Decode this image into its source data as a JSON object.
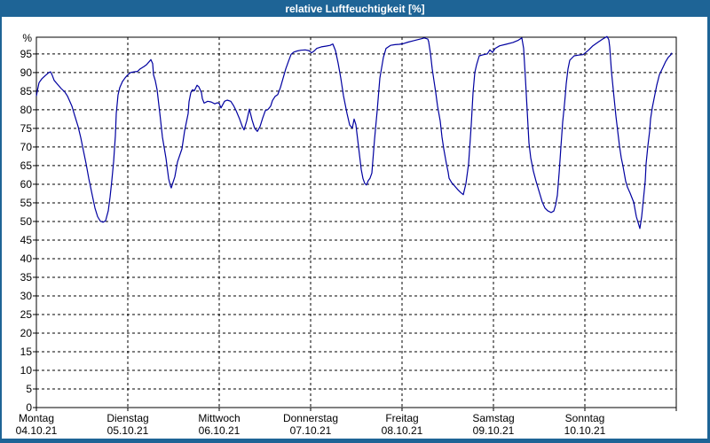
{
  "window": {
    "title": "relative Luftfeuchtigkeit [%]"
  },
  "colors": {
    "titlebar_bg": "#1e6496",
    "titlebar_text": "#ffffff",
    "window_border": "#1e6496",
    "plot_bg": "#ffffff",
    "frame": "#000000",
    "grid": "#000000",
    "label_text": "#000000",
    "line": "#0000a0"
  },
  "chart_data": {
    "type": "line",
    "title": "relative Luftfeuchtigkeit [%]",
    "ylabel": "%",
    "grid": "dashed",
    "legend": "none",
    "y_axis": {
      "min": 0,
      "max": 99.5,
      "tick_step": 5,
      "ticks": [
        0,
        5,
        10,
        15,
        20,
        25,
        30,
        35,
        40,
        45,
        50,
        55,
        60,
        65,
        70,
        75,
        80,
        85,
        90,
        95
      ]
    },
    "x_axis": {
      "unit": "day",
      "range_days": [
        0,
        7
      ],
      "days": [
        {
          "name": "Montag",
          "date": "04.10.21"
        },
        {
          "name": "Dienstag",
          "date": "05.10.21"
        },
        {
          "name": "Mittwoch",
          "date": "06.10.21"
        },
        {
          "name": "Donnerstag",
          "date": "07.10.21"
        },
        {
          "name": "Freitag",
          "date": "08.10.21"
        },
        {
          "name": "Samstag",
          "date": "09.10.21"
        },
        {
          "name": "Sonntag",
          "date": "10.10.21"
        }
      ]
    },
    "series": [
      {
        "name": "relative Luftfeuchtigkeit",
        "unit": "%",
        "points": [
          [
            0.0,
            83.7
          ],
          [
            0.01,
            85.0
          ],
          [
            0.029,
            87.3
          ],
          [
            0.058,
            88.3
          ],
          [
            0.097,
            89.2
          ],
          [
            0.136,
            90.0
          ],
          [
            0.155,
            90.2
          ],
          [
            0.175,
            89.2
          ],
          [
            0.194,
            87.9
          ],
          [
            0.233,
            86.8
          ],
          [
            0.272,
            85.7
          ],
          [
            0.311,
            84.8
          ],
          [
            0.34,
            83.7
          ],
          [
            0.388,
            81.0
          ],
          [
            0.417,
            78.6
          ],
          [
            0.456,
            75.5
          ],
          [
            0.485,
            72.5
          ],
          [
            0.515,
            69.0
          ],
          [
            0.544,
            65.5
          ],
          [
            0.573,
            61.6
          ],
          [
            0.612,
            57.0
          ],
          [
            0.641,
            53.6
          ],
          [
            0.67,
            51.3
          ],
          [
            0.699,
            50.1
          ],
          [
            0.728,
            49.8
          ],
          [
            0.757,
            50.2
          ],
          [
            0.786,
            52.9
          ],
          [
            0.806,
            56.5
          ],
          [
            0.825,
            61.0
          ],
          [
            0.845,
            66.0
          ],
          [
            0.864,
            73.0
          ],
          [
            0.874,
            79.0
          ],
          [
            0.893,
            84.0
          ],
          [
            0.913,
            86.0
          ],
          [
            0.942,
            87.6
          ],
          [
            0.971,
            88.6
          ],
          [
            1.0,
            89.4
          ],
          [
            1.029,
            90.0
          ],
          [
            1.068,
            90.2
          ],
          [
            1.107,
            90.3
          ],
          [
            1.136,
            91.0
          ],
          [
            1.175,
            91.6
          ],
          [
            1.204,
            92.1
          ],
          [
            1.233,
            92.9
          ],
          [
            1.252,
            93.5
          ],
          [
            1.272,
            92.4
          ],
          [
            1.282,
            89.4
          ],
          [
            1.301,
            87.8
          ],
          [
            1.32,
            85.4
          ],
          [
            1.35,
            79.0
          ],
          [
            1.379,
            72.7
          ],
          [
            1.417,
            67.0
          ],
          [
            1.447,
            61.5
          ],
          [
            1.466,
            59.6
          ],
          [
            1.476,
            59.0
          ],
          [
            1.485,
            59.8
          ],
          [
            1.515,
            62.0
          ],
          [
            1.544,
            66.0
          ],
          [
            1.592,
            69.5
          ],
          [
            1.621,
            74.3
          ],
          [
            1.66,
            79.0
          ],
          [
            1.67,
            82.2
          ],
          [
            1.689,
            84.6
          ],
          [
            1.709,
            85.4
          ],
          [
            1.728,
            85.1
          ],
          [
            1.757,
            86.6
          ],
          [
            1.777,
            86.2
          ],
          [
            1.806,
            84.6
          ],
          [
            1.816,
            83.0
          ],
          [
            1.835,
            81.8
          ],
          [
            1.874,
            82.3
          ],
          [
            1.913,
            82.1
          ],
          [
            1.951,
            81.6
          ],
          [
            1.981,
            81.9
          ],
          [
            2.0,
            81.7
          ],
          [
            2.019,
            80.5
          ],
          [
            2.058,
            82.3
          ],
          [
            2.087,
            82.6
          ],
          [
            2.126,
            82.3
          ],
          [
            2.155,
            81.2
          ],
          [
            2.184,
            79.8
          ],
          [
            2.223,
            77.5
          ],
          [
            2.252,
            75.5
          ],
          [
            2.272,
            74.6
          ],
          [
            2.301,
            77.0
          ],
          [
            2.33,
            80.2
          ],
          [
            2.359,
            77.3
          ],
          [
            2.388,
            75.0
          ],
          [
            2.417,
            74.2
          ],
          [
            2.447,
            75.5
          ],
          [
            2.476,
            77.8
          ],
          [
            2.505,
            79.8
          ],
          [
            2.534,
            80.1
          ],
          [
            2.563,
            81.0
          ],
          [
            2.583,
            82.5
          ],
          [
            2.612,
            83.6
          ],
          [
            2.641,
            84.1
          ],
          [
            2.67,
            86.0
          ],
          [
            2.699,
            88.5
          ],
          [
            2.728,
            91.0
          ],
          [
            2.757,
            93.0
          ],
          [
            2.786,
            94.9
          ],
          [
            2.816,
            95.5
          ],
          [
            2.854,
            95.8
          ],
          [
            2.893,
            96.0
          ],
          [
            2.942,
            96.1
          ],
          [
            2.981,
            95.9
          ],
          [
            3.01,
            95.3
          ],
          [
            3.039,
            95.8
          ],
          [
            3.068,
            96.5
          ],
          [
            3.117,
            96.9
          ],
          [
            3.165,
            97.1
          ],
          [
            3.214,
            97.3
          ],
          [
            3.243,
            97.7
          ],
          [
            3.272,
            95.9
          ],
          [
            3.301,
            92.5
          ],
          [
            3.33,
            88.5
          ],
          [
            3.359,
            83.8
          ],
          [
            3.398,
            79.0
          ],
          [
            3.427,
            75.9
          ],
          [
            3.456,
            75.1
          ],
          [
            3.476,
            77.5
          ],
          [
            3.495,
            76.0
          ],
          [
            3.515,
            72.0
          ],
          [
            3.534,
            68.0
          ],
          [
            3.553,
            64.0
          ],
          [
            3.573,
            61.5
          ],
          [
            3.592,
            60.2
          ],
          [
            3.611,
            59.8
          ],
          [
            3.631,
            61.0
          ],
          [
            3.65,
            61.6
          ],
          [
            3.67,
            63.0
          ],
          [
            3.699,
            72.0
          ],
          [
            3.728,
            79.8
          ],
          [
            3.757,
            88.5
          ],
          [
            3.796,
            94.1
          ],
          [
            3.825,
            96.5
          ],
          [
            3.874,
            97.3
          ],
          [
            3.922,
            97.5
          ],
          [
            3.971,
            97.6
          ],
          [
            4.019,
            97.8
          ],
          [
            4.068,
            98.2
          ],
          [
            4.117,
            98.5
          ],
          [
            4.165,
            98.8
          ],
          [
            4.214,
            99.1
          ],
          [
            4.243,
            99.3
          ],
          [
            4.282,
            99.0
          ],
          [
            4.291,
            98.3
          ],
          [
            4.311,
            95.2
          ],
          [
            4.33,
            91.0
          ],
          [
            4.35,
            87.8
          ],
          [
            4.369,
            84.6
          ],
          [
            4.388,
            81.0
          ],
          [
            4.417,
            77.0
          ],
          [
            4.437,
            72.7
          ],
          [
            4.456,
            69.5
          ],
          [
            4.485,
            65.5
          ],
          [
            4.505,
            63.2
          ],
          [
            4.515,
            61.6
          ],
          [
            4.544,
            60.4
          ],
          [
            4.573,
            59.6
          ],
          [
            4.612,
            58.5
          ],
          [
            4.641,
            57.8
          ],
          [
            4.67,
            57.2
          ],
          [
            4.699,
            60.2
          ],
          [
            4.728,
            65.5
          ],
          [
            4.757,
            76.0
          ],
          [
            4.777,
            84.6
          ],
          [
            4.796,
            90.0
          ],
          [
            4.816,
            92.1
          ],
          [
            4.845,
            94.5
          ],
          [
            4.893,
            94.8
          ],
          [
            4.932,
            95.0
          ],
          [
            4.961,
            96.1
          ],
          [
            4.99,
            95.4
          ],
          [
            5.019,
            96.5
          ],
          [
            5.068,
            97.2
          ],
          [
            5.136,
            97.6
          ],
          [
            5.214,
            98.1
          ],
          [
            5.272,
            98.7
          ],
          [
            5.311,
            99.3
          ],
          [
            5.33,
            96.5
          ],
          [
            5.35,
            88.5
          ],
          [
            5.369,
            79.8
          ],
          [
            5.388,
            71.1
          ],
          [
            5.408,
            67.1
          ],
          [
            5.437,
            63.5
          ],
          [
            5.466,
            60.8
          ],
          [
            5.495,
            58.4
          ],
          [
            5.534,
            55.2
          ],
          [
            5.563,
            53.6
          ],
          [
            5.592,
            52.9
          ],
          [
            5.631,
            52.4
          ],
          [
            5.66,
            52.8
          ],
          [
            5.68,
            54.4
          ],
          [
            5.699,
            57.0
          ],
          [
            5.718,
            63.0
          ],
          [
            5.738,
            70.0
          ],
          [
            5.757,
            76.7
          ],
          [
            5.777,
            81.4
          ],
          [
            5.786,
            84.0
          ],
          [
            5.796,
            87.0
          ],
          [
            5.816,
            91.0
          ],
          [
            5.835,
            93.3
          ],
          [
            5.883,
            94.5
          ],
          [
            5.932,
            94.7
          ],
          [
            5.981,
            94.8
          ],
          [
            6.039,
            96.0
          ],
          [
            6.087,
            97.2
          ],
          [
            6.146,
            98.2
          ],
          [
            6.194,
            99.0
          ],
          [
            6.243,
            99.7
          ],
          [
            6.262,
            98.8
          ],
          [
            6.272,
            96.9
          ],
          [
            6.291,
            90.2
          ],
          [
            6.311,
            85.4
          ],
          [
            6.34,
            78.3
          ],
          [
            6.359,
            74.3
          ],
          [
            6.379,
            70.3
          ],
          [
            6.398,
            67.1
          ],
          [
            6.417,
            64.8
          ],
          [
            6.447,
            60.8
          ],
          [
            6.466,
            59.2
          ],
          [
            6.495,
            57.6
          ],
          [
            6.515,
            56.4
          ],
          [
            6.534,
            55.2
          ],
          [
            6.563,
            51.3
          ],
          [
            6.592,
            48.9
          ],
          [
            6.602,
            48.1
          ],
          [
            6.621,
            51.3
          ],
          [
            6.641,
            56.0
          ],
          [
            6.66,
            60.8
          ],
          [
            6.67,
            65.5
          ],
          [
            6.689,
            70.3
          ],
          [
            6.709,
            74.3
          ],
          [
            6.718,
            77.5
          ],
          [
            6.738,
            80.6
          ],
          [
            6.757,
            83.0
          ],
          [
            6.786,
            86.6
          ],
          [
            6.816,
            89.4
          ],
          [
            6.854,
            91.4
          ],
          [
            6.883,
            92.9
          ],
          [
            6.913,
            94.1
          ],
          [
            6.942,
            94.8
          ],
          [
            6.951,
            95.3
          ]
        ]
      }
    ]
  }
}
